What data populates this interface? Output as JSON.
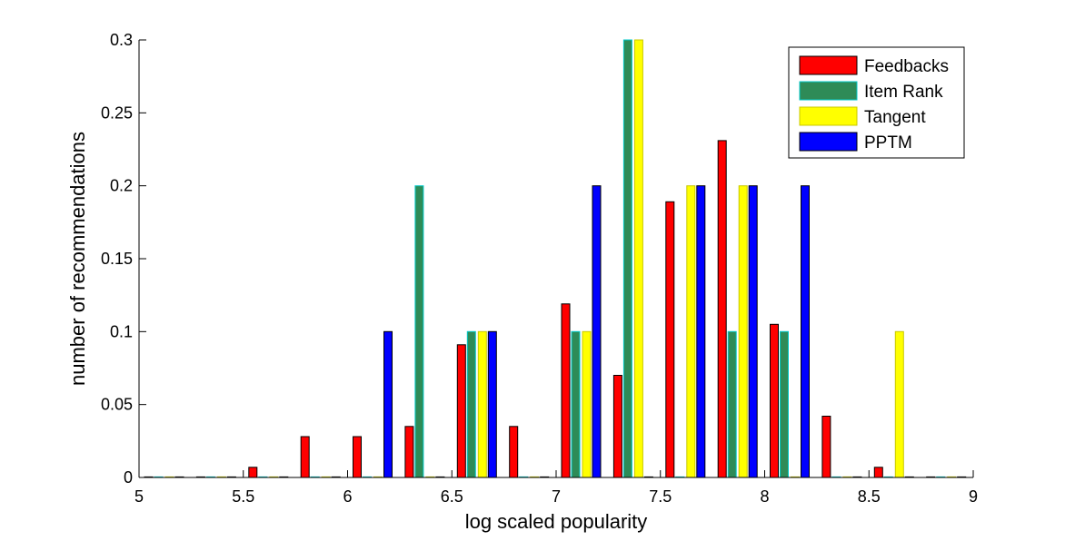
{
  "chart_data": {
    "type": "bar",
    "title": "",
    "xlabel": "log scaled popularity",
    "ylabel": "number of recommendations",
    "xlim": [
      5,
      9
    ],
    "ylim": [
      0,
      0.3
    ],
    "xticks": [
      5,
      5.5,
      6,
      6.5,
      7,
      7.5,
      8,
      8.5,
      9
    ],
    "xtick_labels": [
      "5",
      "5.5",
      "6",
      "6.5",
      "7",
      "7.5",
      "8",
      "8.5",
      "9"
    ],
    "yticks": [
      0,
      0.05,
      0.1,
      0.15,
      0.2,
      0.25,
      0.3
    ],
    "ytick_labels": [
      "0",
      "0.05",
      "0.1",
      "0.15",
      "0.2",
      "0.25",
      "0.3"
    ],
    "grid": false,
    "legend_position": "top-right",
    "x": [
      5.12,
      5.37,
      5.62,
      5.87,
      6.12,
      6.37,
      6.62,
      6.87,
      7.12,
      7.37,
      7.62,
      7.87,
      8.12,
      8.37,
      8.62,
      8.87
    ],
    "series": [
      {
        "name": "Feedbacks",
        "color": "#ff0000",
        "values": [
          0,
          0,
          0.007,
          0.028,
          0.028,
          0.035,
          0.091,
          0.035,
          0.119,
          0.07,
          0.189,
          0.231,
          0.105,
          0.042,
          0.007,
          0
        ]
      },
      {
        "name": "Item Rank",
        "color": "#2e8b57",
        "values": [
          0,
          0,
          0,
          0,
          0,
          0.2,
          0.1,
          0,
          0.1,
          0.3,
          0,
          0.1,
          0.1,
          0,
          0,
          0
        ]
      },
      {
        "name": "Tangent",
        "color": "#ffff00",
        "values": [
          0,
          0,
          0,
          0,
          0,
          0,
          0.1,
          0,
          0.1,
          0.3,
          0.2,
          0.2,
          0,
          0,
          0.1,
          0
        ]
      },
      {
        "name": "PPTM",
        "color": "#0000ff",
        "values": [
          0,
          0,
          0,
          0,
          0.1,
          0,
          0.1,
          0,
          0.2,
          0,
          0.2,
          0.2,
          0.2,
          0,
          0,
          0
        ]
      }
    ]
  }
}
